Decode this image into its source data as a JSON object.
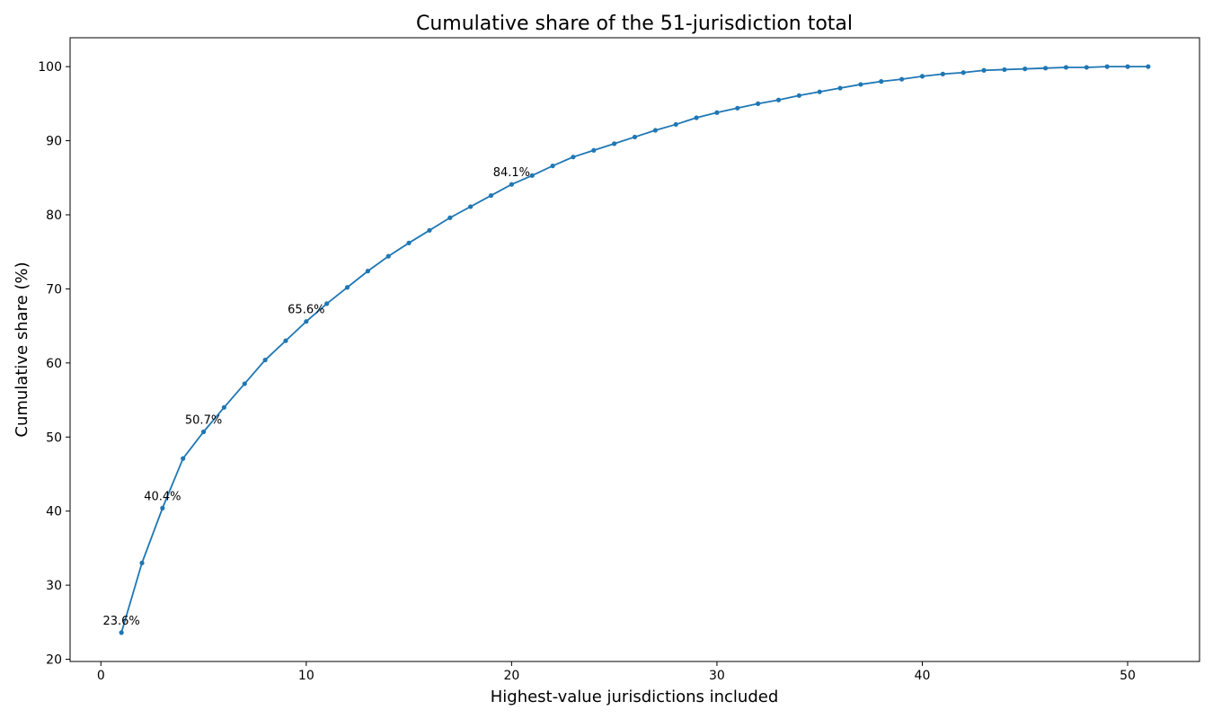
{
  "chart_data": {
    "type": "line",
    "title": "Cumulative share of the 51-jurisdiction total",
    "xlabel": "Highest-value jurisdictions included",
    "ylabel": "Cumulative share (%)",
    "xlim": [
      -1.5,
      53.5
    ],
    "ylim": [
      19.7,
      103.9
    ],
    "xticks": [
      0,
      10,
      20,
      30,
      40,
      50
    ],
    "yticks": [
      20,
      30,
      40,
      50,
      60,
      70,
      80,
      90,
      100
    ],
    "grid": false,
    "series": [
      {
        "color": "#1f77b4",
        "x": [
          1,
          2,
          3,
          4,
          5,
          6,
          7,
          8,
          9,
          10,
          11,
          12,
          13,
          14,
          15,
          16,
          17,
          18,
          19,
          20,
          21,
          22,
          23,
          24,
          25,
          26,
          27,
          28,
          29,
          30,
          31,
          32,
          33,
          34,
          35,
          36,
          37,
          38,
          39,
          40,
          41,
          42,
          43,
          44,
          45,
          46,
          47,
          48,
          49,
          50,
          51
        ],
        "y": [
          23.6,
          33.0,
          40.4,
          47.1,
          50.7,
          54.0,
          57.2,
          60.4,
          63.0,
          65.6,
          68.0,
          70.2,
          72.4,
          74.4,
          76.2,
          77.9,
          79.6,
          81.1,
          82.6,
          84.1,
          85.3,
          86.6,
          87.8,
          88.7,
          89.6,
          90.5,
          91.4,
          92.2,
          93.1,
          93.8,
          94.4,
          95.0,
          95.5,
          96.1,
          96.6,
          97.1,
          97.6,
          98.0,
          98.3,
          98.7,
          99.0,
          99.2,
          99.5,
          99.6,
          99.7,
          99.8,
          99.9,
          99.9,
          100.0,
          100.0,
          100.0
        ]
      }
    ],
    "annotations": [
      {
        "x": 1,
        "y": 23.6,
        "text": "23.6%"
      },
      {
        "x": 3,
        "y": 40.4,
        "text": "40.4%"
      },
      {
        "x": 5,
        "y": 50.7,
        "text": "50.7%"
      },
      {
        "x": 10,
        "y": 65.6,
        "text": "65.6%"
      },
      {
        "x": 20,
        "y": 84.1,
        "text": "84.1%"
      }
    ]
  }
}
